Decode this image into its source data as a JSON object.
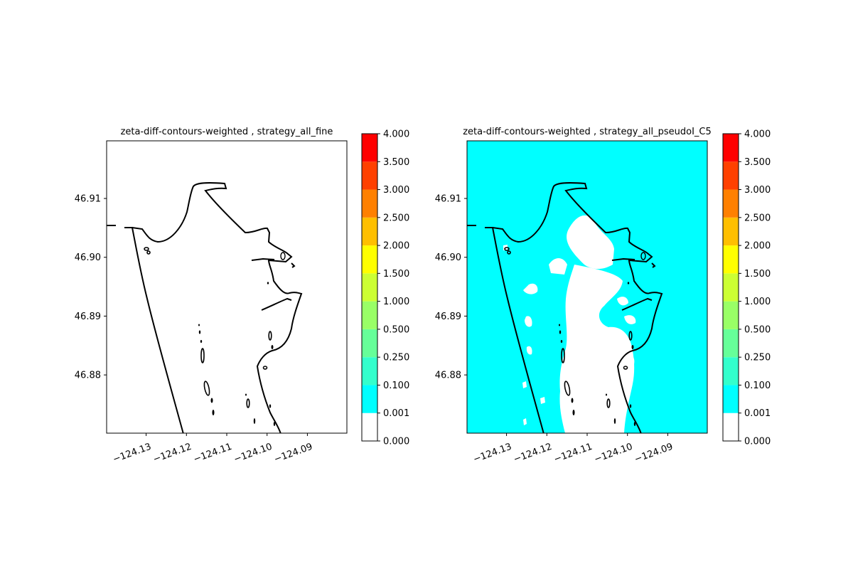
{
  "chart_data": [
    {
      "type": "heatmap",
      "title": "zeta-diff-contours-weighted , strategy_all_fine",
      "xlabel": "",
      "ylabel": "",
      "xlim": [
        -124.1398,
        -124.0802
      ],
      "ylim": [
        46.8701,
        46.9198
      ],
      "x_ticks": [
        -124.13,
        -124.12,
        -124.11,
        -124.1,
        -124.09
      ],
      "x_tick_labels": [
        "−124.13",
        "−124.12",
        "−124.11",
        "−124.10",
        "−124.09"
      ],
      "y_ticks": [
        46.88,
        46.89,
        46.9,
        46.91
      ],
      "y_tick_labels": [
        "46.88",
        "46.89",
        "46.90",
        "46.91"
      ],
      "fill": "none",
      "fill_value_range": [
        0.0,
        0.001
      ],
      "colorbar": {
        "levels": [
          0.0,
          0.001,
          0.1,
          0.25,
          0.5,
          1.0,
          1.5,
          2.0,
          2.5,
          3.0,
          3.5,
          4.0
        ],
        "tick_labels": [
          "0.000",
          "0.001",
          "0.100",
          "0.250",
          "0.500",
          "1.000",
          "1.500",
          "2.000",
          "2.500",
          "3.000",
          "3.500",
          "4.000"
        ],
        "colors": [
          "#ffffff",
          "#00ffff",
          "#33ffcc",
          "#66ff99",
          "#99ff66",
          "#ccff33",
          "#ffff00",
          "#ffbf00",
          "#ff8000",
          "#ff4000",
          "#ff0000"
        ]
      }
    },
    {
      "type": "heatmap",
      "title": "zeta-diff-contours-weighted , strategy_all_pseudoI_C5",
      "xlabel": "",
      "ylabel": "",
      "xlim": [
        -124.1398,
        -124.0802
      ],
      "ylim": [
        46.8701,
        46.9198
      ],
      "x_ticks": [
        -124.13,
        -124.12,
        -124.11,
        -124.1,
        -124.09
      ],
      "x_tick_labels": [
        "−124.13",
        "−124.12",
        "−124.11",
        "−124.10",
        "−124.09"
      ],
      "y_ticks": [
        46.88,
        46.89,
        46.9,
        46.91
      ],
      "y_tick_labels": [
        "46.88",
        "46.89",
        "46.90",
        "46.91"
      ],
      "fill": "cyan",
      "fill_value_range": [
        0.001,
        0.1
      ],
      "colorbar": {
        "levels": [
          0.0,
          0.001,
          0.1,
          0.25,
          0.5,
          1.0,
          1.5,
          2.0,
          2.5,
          3.0,
          3.5,
          4.0
        ],
        "tick_labels": [
          "0.000",
          "0.001",
          "0.100",
          "0.250",
          "0.500",
          "1.000",
          "1.500",
          "2.000",
          "2.500",
          "3.000",
          "3.500",
          "4.000"
        ],
        "colors": [
          "#ffffff",
          "#00ffff",
          "#33ffcc",
          "#66ff99",
          "#99ff66",
          "#ccff33",
          "#ffff00",
          "#ffbf00",
          "#ff8000",
          "#ff4000",
          "#ff0000"
        ]
      }
    }
  ]
}
